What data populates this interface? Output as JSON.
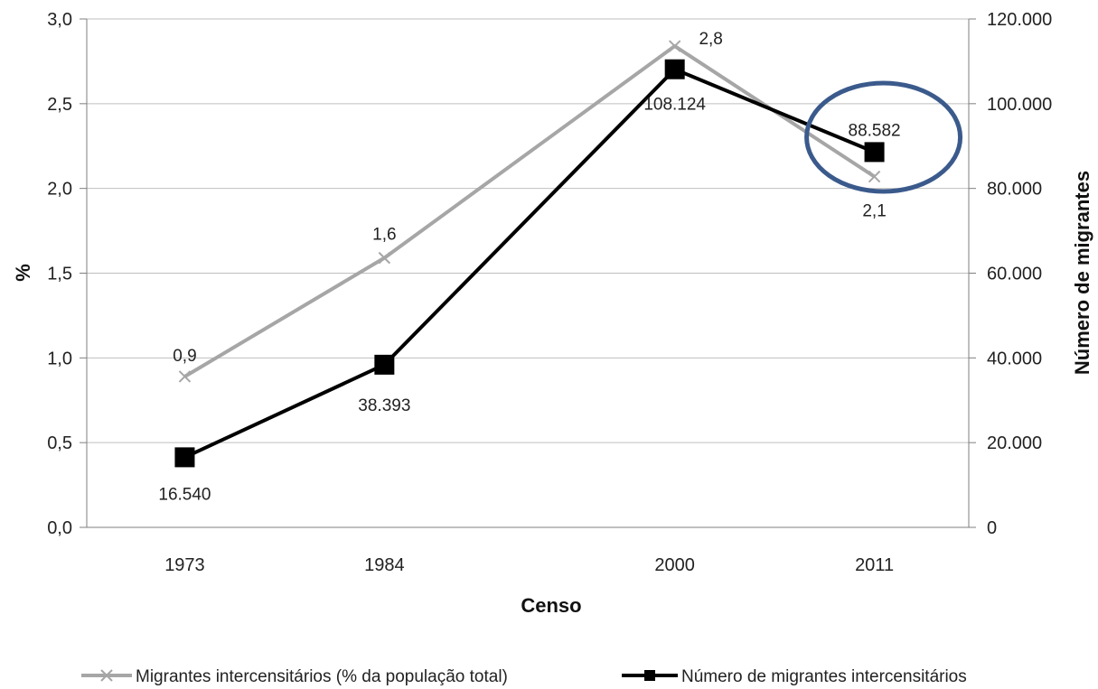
{
  "chart_data": {
    "type": "line",
    "categories": [
      "1973",
      "1984",
      "2000",
      "2011"
    ],
    "x_positions": [
      1973,
      1984,
      2000,
      2011
    ],
    "xlabel": "Censo",
    "ylabel_left": "%",
    "ylabel_right": "Número de migrantes",
    "ylim_left": [
      0,
      3
    ],
    "ylim_right": [
      0,
      120000
    ],
    "yticks_left": [
      "0,0",
      "0,5",
      "1,0",
      "1,5",
      "2,0",
      "2,5",
      "3,0"
    ],
    "yticks_right": [
      "0",
      "20.000",
      "40.000",
      "60.000",
      "80.000",
      "100.000",
      "120.000"
    ],
    "grid": true,
    "legend_position": "bottom",
    "series": [
      {
        "name": "Migrantes intercensitários (% da população total)",
        "axis": "left",
        "values": [
          0.89,
          1.59,
          2.84,
          2.07
        ],
        "labels": [
          "0,9",
          "1,6",
          "2,8",
          "2,1"
        ],
        "color": "#a6a6a6",
        "marker": "x"
      },
      {
        "name": "Número de migrantes intercensitários",
        "axis": "right",
        "values": [
          16540,
          38393,
          108124,
          88582
        ],
        "labels": [
          "16.540",
          "38.393",
          "108.124",
          "88.582"
        ],
        "color": "#000000",
        "marker": "square"
      }
    ],
    "annotation": {
      "type": "ellipse",
      "target": "2011",
      "color": "#3b5a8c"
    }
  }
}
